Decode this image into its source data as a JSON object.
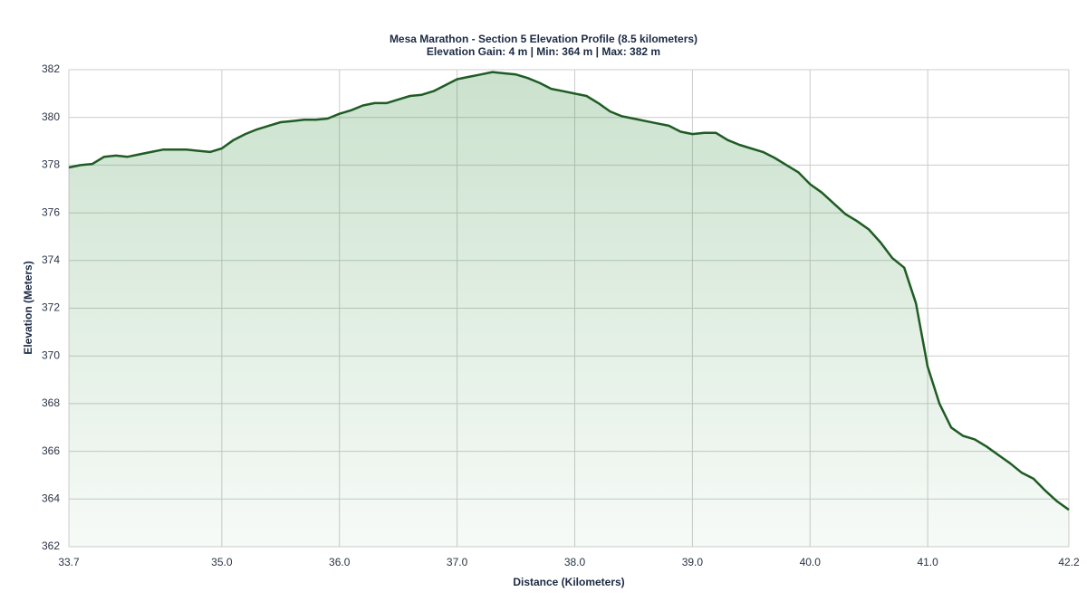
{
  "chart_data": {
    "type": "area",
    "title": "Mesa Marathon - Section 5 Elevation Profile (8.5 kilometers)",
    "subtitle": "Elevation Gain: 4 m | Min: 364 m | Max: 382 m",
    "x_label": "Distance (Kilometers)",
    "y_label": "Elevation (Meters)",
    "x": [
      33.7,
      33.8,
      33.9,
      34.0,
      34.1,
      34.2,
      34.3,
      34.4,
      34.5,
      34.6,
      34.7,
      34.8,
      34.9,
      35.0,
      35.1,
      35.2,
      35.3,
      35.4,
      35.5,
      35.6,
      35.7,
      35.8,
      35.9,
      36.0,
      36.1,
      36.2,
      36.3,
      36.4,
      36.5,
      36.6,
      36.7,
      36.8,
      36.9,
      37.0,
      37.1,
      37.2,
      37.3,
      37.4,
      37.5,
      37.6,
      37.7,
      37.8,
      37.9,
      38.0,
      38.1,
      38.2,
      38.3,
      38.4,
      38.5,
      38.6,
      38.7,
      38.8,
      38.9,
      39.0,
      39.1,
      39.2,
      39.3,
      39.4,
      39.5,
      39.6,
      39.7,
      39.8,
      39.9,
      40.0,
      40.1,
      40.2,
      40.3,
      40.4,
      40.5,
      40.6,
      40.7,
      40.8,
      40.9,
      41.0,
      41.1,
      41.2,
      41.3,
      41.4,
      41.5,
      41.6,
      41.7,
      41.8,
      41.9,
      42.0,
      42.1,
      42.2
    ],
    "values": [
      377.9,
      378.0,
      378.05,
      378.35,
      378.4,
      378.35,
      378.45,
      378.55,
      378.65,
      378.65,
      378.65,
      378.6,
      378.55,
      378.7,
      379.05,
      379.3,
      379.5,
      379.65,
      379.8,
      379.85,
      379.9,
      379.9,
      379.95,
      380.15,
      380.3,
      380.5,
      380.6,
      380.6,
      380.75,
      380.9,
      380.95,
      381.1,
      381.35,
      381.6,
      381.7,
      381.8,
      381.9,
      381.85,
      381.8,
      381.65,
      381.45,
      381.2,
      381.1,
      381.0,
      380.9,
      380.6,
      380.25,
      380.05,
      379.95,
      379.85,
      379.75,
      379.65,
      379.4,
      379.3,
      379.35,
      379.35,
      379.05,
      378.85,
      378.7,
      378.55,
      378.3,
      378.0,
      377.7,
      377.2,
      376.85,
      376.4,
      375.95,
      375.65,
      375.3,
      374.75,
      374.1,
      373.7,
      372.2,
      369.55,
      368.0,
      367.0,
      366.65,
      366.5,
      366.2,
      365.85,
      365.5,
      365.1,
      364.85,
      364.35,
      363.9,
      363.55
    ],
    "color": "#1f5c24",
    "xlim": [
      33.7,
      42.2
    ],
    "xticks": [
      33.7,
      {
        "value": 35,
        "label": "35.0"
      },
      {
        "value": 36,
        "label": "36.0"
      },
      {
        "value": 37,
        "label": "37.0"
      },
      {
        "value": 38,
        "label": "38.0"
      },
      {
        "value": 39,
        "label": "39.0"
      },
      {
        "value": 40,
        "label": "40.0"
      },
      {
        "value": 41,
        "label": "41.0"
      },
      42.2
    ],
    "ylim": [
      362,
      382
    ],
    "yticks": [
      362,
      364,
      366,
      368,
      370,
      372,
      374,
      376,
      378,
      380,
      382
    ],
    "grid": true
  }
}
